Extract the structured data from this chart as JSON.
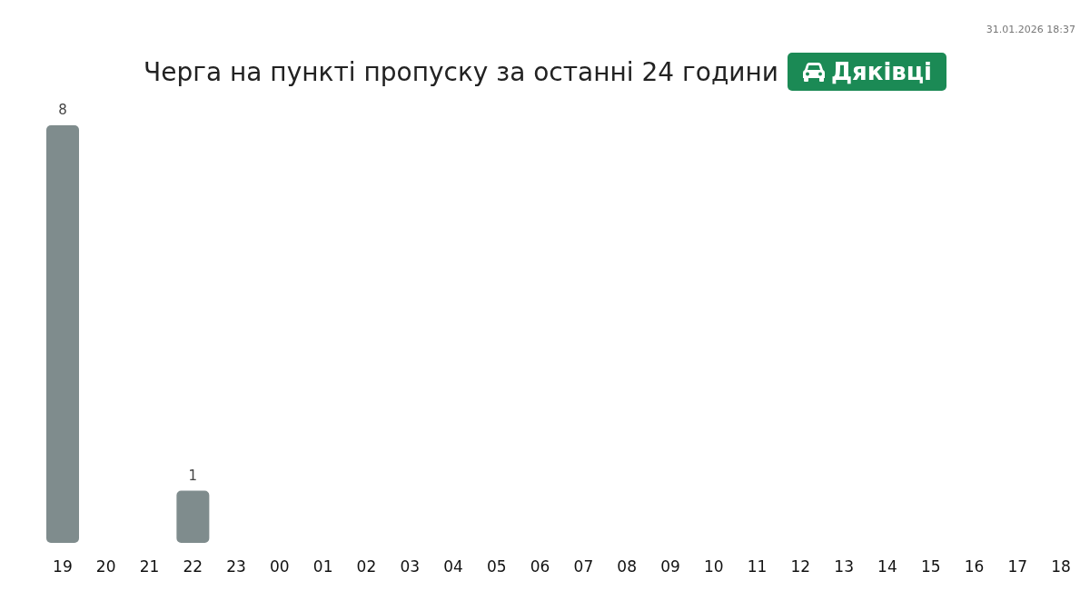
{
  "chart_data": {
    "type": "bar",
    "title": "Черга на пункті пропуску за останні 24 години",
    "subtitle": "Дяківці",
    "annotations": [
      "31.01.2026 18:37"
    ],
    "categories": [
      "19",
      "20",
      "21",
      "22",
      "23",
      "00",
      "01",
      "02",
      "03",
      "04",
      "05",
      "06",
      "07",
      "08",
      "09",
      "10",
      "11",
      "12",
      "13",
      "14",
      "15",
      "16",
      "17",
      "18"
    ],
    "values": [
      8,
      0,
      0,
      1,
      0,
      0,
      0,
      0,
      0,
      0,
      0,
      0,
      0,
      0,
      0,
      0,
      0,
      0,
      0,
      0,
      0,
      0,
      0,
      0
    ],
    "value_labels": [
      "8",
      null,
      null,
      "1",
      null,
      null,
      null,
      null,
      null,
      null,
      null,
      null,
      null,
      null,
      null,
      null,
      null,
      null,
      null,
      null,
      null,
      null,
      null,
      null
    ],
    "color": "#7f8c8d",
    "ylim": [
      0,
      8
    ]
  }
}
